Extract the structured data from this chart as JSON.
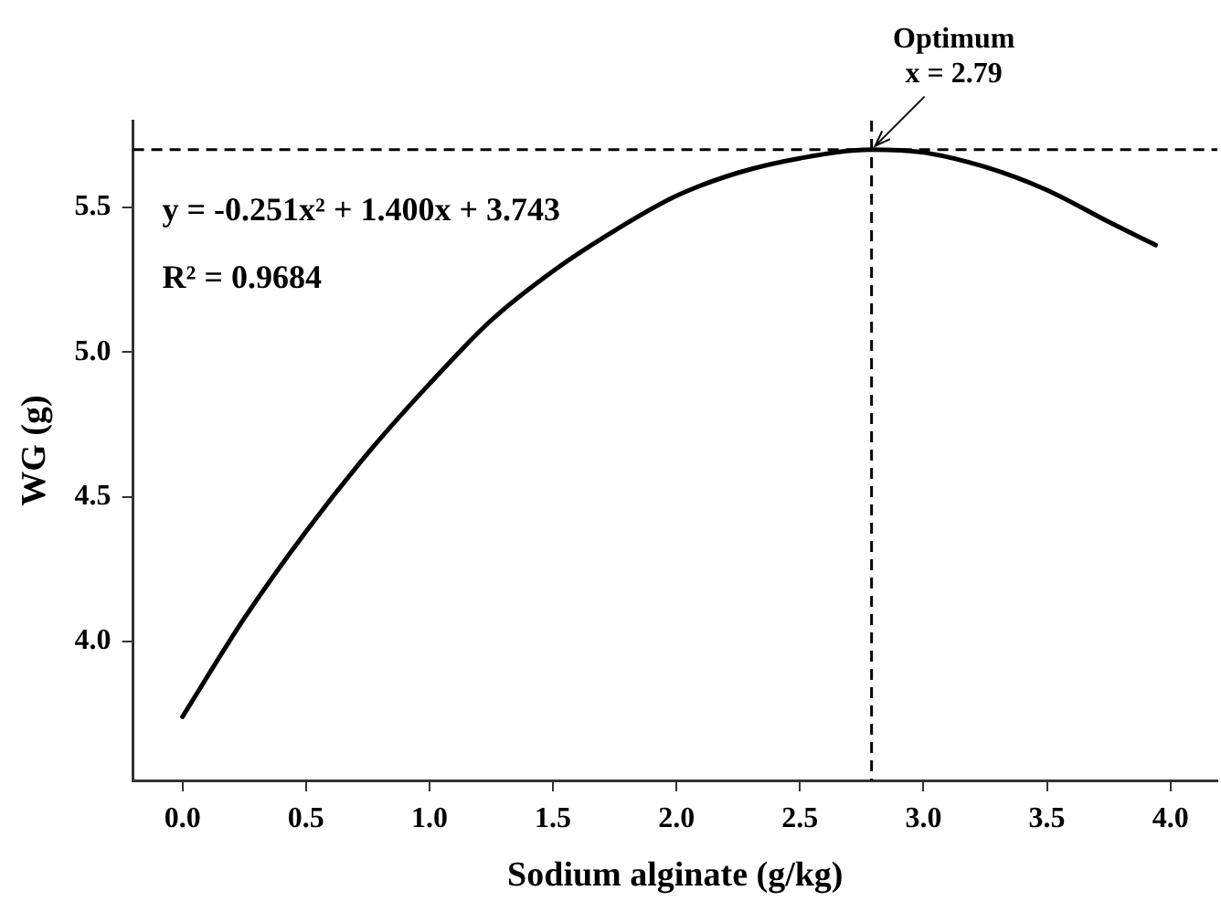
{
  "chart_data": {
    "type": "line",
    "xlabel": "Sodium alginate (g/kg)",
    "ylabel": "WG (g)",
    "x": [
      0,
      0.25,
      0.5,
      0.75,
      1.0,
      1.25,
      1.5,
      1.75,
      2.0,
      2.25,
      2.5,
      2.79,
      3.0,
      3.25,
      3.5,
      3.75,
      3.94
    ],
    "series": [
      {
        "color": "#000000",
        "values": [
          3.74,
          4.08,
          4.38,
          4.65,
          4.89,
          5.11,
          5.28,
          5.42,
          5.54,
          5.62,
          5.67,
          5.7,
          5.69,
          5.64,
          5.56,
          5.45,
          5.37
        ]
      }
    ],
    "xlim": [
      -0.2,
      4.19
    ],
    "xticks": [
      {
        "value": 0,
        "label": "0.0"
      },
      {
        "value": 0.5,
        "label": "0.5"
      },
      {
        "value": 1,
        "label": "1.0"
      },
      {
        "value": 1.5,
        "label": "1.5"
      },
      {
        "value": 2,
        "label": "2.0"
      },
      {
        "value": 2.5,
        "label": "2.5"
      },
      {
        "value": 3,
        "label": "3.0"
      },
      {
        "value": 3.5,
        "label": "3.5"
      },
      {
        "value": 4,
        "label": "4.0"
      }
    ],
    "ylim": [
      3.52,
      5.8
    ],
    "yticks": [
      {
        "value": 4,
        "label": "4.0"
      },
      4.5,
      {
        "value": 5,
        "label": "5.0"
      },
      5.5
    ],
    "grid": false,
    "legend": false,
    "marker": "none",
    "line_style": "solid",
    "ref_lines": [
      {
        "axis": "y",
        "value": 5.7,
        "color": "#000000",
        "line_style": "dashed"
      },
      {
        "axis": "x",
        "value": 2.79,
        "color": "#000000",
        "line_style": "dashed"
      }
    ],
    "annotations": [
      "y = -0.251x² + 1.400x + 3.743",
      "R² = 0.9684",
      {
        "text": "Optimum\nx = 2.79",
        "x": 2.79,
        "y": 5.7
      }
    ]
  }
}
